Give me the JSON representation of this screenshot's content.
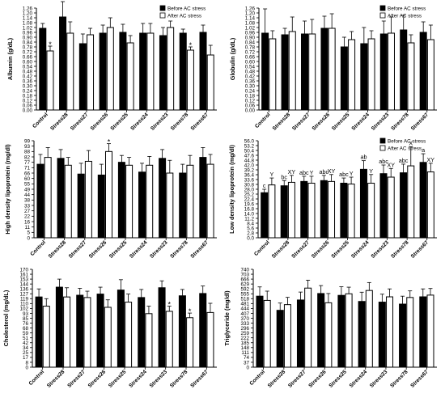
{
  "legend": {
    "before": "Before AC stress",
    "after": "After AC stress"
  },
  "colors": {
    "before": "#000000",
    "after": "#ffffff",
    "stroke": "#000000"
  },
  "chart_data": [
    {
      "type": "bar",
      "ylabel": "Albumin (g/dL)",
      "ylim": [
        0.0,
        1.26
      ],
      "yticks": [
        "0.00",
        "0.06",
        "0.12",
        "0.18",
        "0.24",
        "0.30",
        "0.36",
        "0.42",
        "0.48",
        "0.54",
        "0.60",
        "0.66",
        "0.72",
        "0.78",
        "0.84",
        "0.90",
        "0.96",
        "1.02",
        "1.08",
        "1.14",
        "1.20",
        "1.26"
      ],
      "ytick_values": [
        0.0,
        0.06,
        0.12,
        0.18,
        0.24,
        0.3,
        0.36,
        0.42,
        0.48,
        0.54,
        0.6,
        0.66,
        0.72,
        0.78,
        0.84,
        0.9,
        0.96,
        1.02,
        1.08,
        1.14,
        1.2,
        1.26
      ],
      "categories": [
        "Control",
        "Stress28",
        "Stress27",
        "Stress26",
        "Stress25",
        "Stress24",
        "Stress23",
        "Stress78",
        "Stress67"
      ],
      "series": [
        {
          "name": "Before AC stress",
          "values": [
            1.01,
            1.15,
            0.82,
            0.95,
            0.96,
            0.95,
            0.92,
            0.95,
            0.96
          ],
          "errors": [
            0.06,
            0.19,
            0.12,
            0.1,
            0.1,
            0.12,
            0.1,
            0.05,
            0.09
          ]
        },
        {
          "name": "After AC stress",
          "values": [
            0.73,
            0.95,
            0.93,
            1.02,
            0.83,
            0.95,
            1.02,
            0.74,
            0.68
          ],
          "errors": [
            0.06,
            0.14,
            0.08,
            0.12,
            0.09,
            0.12,
            0.08,
            0.04,
            0.12
          ]
        }
      ],
      "annotations": [
        {
          "category": "Control",
          "series": "after",
          "text": "*"
        },
        {
          "category": "Stress78",
          "series": "after",
          "text": "*"
        }
      ],
      "legend": "top-right"
    },
    {
      "type": "bar",
      "ylabel": "Globulin (g/dL)",
      "ylim": [
        0.0,
        1.26
      ],
      "yticks": [
        "0.00",
        "0.06",
        "0.12",
        "0.18",
        "0.24",
        "0.30",
        "0.36",
        "0.42",
        "0.48",
        "0.54",
        "0.60",
        "0.66",
        "0.72",
        "0.78",
        "0.84",
        "0.90",
        "0.96",
        "1.02",
        "1.08",
        "1.14",
        "1.20",
        "1.26"
      ],
      "ytick_values": [
        0.0,
        0.06,
        0.12,
        0.18,
        0.24,
        0.3,
        0.36,
        0.42,
        0.48,
        0.54,
        0.6,
        0.66,
        0.72,
        0.78,
        0.84,
        0.9,
        0.96,
        1.02,
        1.08,
        1.14,
        1.2,
        1.26
      ],
      "categories": [
        "Control",
        "Stress28",
        "Stress27",
        "Stress26",
        "Stress25",
        "Stress24",
        "Stress23",
        "Stress78",
        "Stress67"
      ],
      "series": [
        {
          "name": "Before AC stress",
          "values": [
            0.95,
            0.93,
            0.94,
            1.01,
            0.78,
            0.82,
            0.94,
            0.99,
            0.96
          ],
          "errors": [
            0.3,
            0.08,
            0.16,
            0.15,
            0.12,
            0.2,
            0.16,
            0.18,
            0.13
          ]
        },
        {
          "name": "After AC stress",
          "values": [
            0.88,
            0.97,
            0.94,
            1.01,
            0.87,
            0.88,
            0.95,
            0.83,
            0.87
          ],
          "errors": [
            0.1,
            0.18,
            0.18,
            0.18,
            0.1,
            0.1,
            0.2,
            0.1,
            0.18
          ]
        }
      ],
      "annotations": [],
      "legend": "top-right"
    },
    {
      "type": "bar",
      "ylabel": "High density lipoprotein (mg/dl)",
      "ylim": [
        0,
        99
      ],
      "yticks": [
        "0",
        "5",
        "11",
        "16",
        "22",
        "27",
        "33",
        "38",
        "44",
        "49",
        "55",
        "60",
        "66",
        "71",
        "77",
        "82",
        "88",
        "93",
        "99"
      ],
      "ytick_values": [
        0,
        5.5,
        11,
        16.5,
        22,
        27.5,
        33,
        38.5,
        44,
        49.5,
        55,
        60.5,
        66,
        71.5,
        77,
        82.5,
        88,
        93.5,
        99
      ],
      "categories": [
        "Control",
        "Stress28",
        "Stress27",
        "Stress26",
        "Stress25",
        "Stress24",
        "Stress23",
        "Stress78",
        "Stress67"
      ],
      "series": [
        {
          "name": "Before AC stress",
          "values": [
            75,
            81,
            65,
            64,
            77,
            67,
            81,
            66,
            82
          ],
          "errors": [
            10,
            9,
            11,
            11,
            7,
            9,
            9,
            9,
            10
          ]
        },
        {
          "name": "After AC stress",
          "values": [
            82,
            74,
            78,
            88,
            74,
            74,
            66,
            74,
            75
          ],
          "errors": [
            10,
            8,
            11,
            8,
            8,
            9,
            13,
            10,
            10
          ]
        }
      ],
      "annotations": [
        {
          "category": "Stress26",
          "series": "after",
          "text": "*"
        }
      ],
      "legend": "none"
    },
    {
      "type": "bar",
      "ylabel": "Low density lipoprotein (mg/dl)",
      "ylim": [
        0,
        56
      ],
      "yticks": [
        "0.0",
        "2.8",
        "5.6",
        "8.4",
        "11.2",
        "14.0",
        "16.8",
        "19.6",
        "22.4",
        "25.2",
        "28.0",
        "30.8",
        "33.6",
        "36.4",
        "39.2",
        "42.0",
        "44.8",
        "47.6",
        "50.4",
        "53.2",
        "56.0"
      ],
      "ytick_values": [
        0,
        2.8,
        5.6,
        8.4,
        11.2,
        14.0,
        16.8,
        19.6,
        22.4,
        25.2,
        28.0,
        30.8,
        33.6,
        36.4,
        39.2,
        42.0,
        44.8,
        47.6,
        50.4,
        53.2,
        56.0
      ],
      "categories": [
        "Control",
        "Stress28",
        "Stress27",
        "Stress26",
        "Stress25",
        "Stress24",
        "Stress23",
        "Stress78",
        "Stress67"
      ],
      "series": [
        {
          "name": "Before AC stress",
          "values": [
            26.0,
            30.0,
            32.5,
            33.0,
            31.5,
            39.5,
            37.0,
            37.5,
            43.5
          ],
          "errors": [
            2.0,
            3.0,
            3.0,
            3.0,
            3.0,
            5.0,
            5.0,
            5.0,
            5.0
          ]
        },
        {
          "name": "After AC stress",
          "values": [
            30.5,
            32.0,
            31.5,
            32.5,
            31.0,
            31.5,
            35.0,
            41.5,
            38.0
          ],
          "errors": [
            4.0,
            4.0,
            4.0,
            4.0,
            4.0,
            5.0,
            5.0,
            11.0,
            5.0
          ]
        }
      ],
      "annotations": [
        {
          "category": "Control",
          "series": "before",
          "text": "c"
        },
        {
          "category": "Control",
          "series": "after",
          "text": "Y"
        },
        {
          "category": "Stress28",
          "series": "before",
          "text": "bc"
        },
        {
          "category": "Stress28",
          "series": "after",
          "text": "XY"
        },
        {
          "category": "Stress27",
          "series": "before",
          "text": "abc"
        },
        {
          "category": "Stress27",
          "series": "after",
          "text": "Y"
        },
        {
          "category": "Stress26",
          "series": "before",
          "text": "abc"
        },
        {
          "category": "Stress26",
          "series": "after",
          "text": "XY"
        },
        {
          "category": "Stress25",
          "series": "before",
          "text": "abc"
        },
        {
          "category": "Stress25",
          "series": "after",
          "text": "Y"
        },
        {
          "category": "Stress24",
          "series": "before",
          "text": "ab"
        },
        {
          "category": "Stress24",
          "series": "after",
          "text": "Y"
        },
        {
          "category": "Stress23",
          "series": "before",
          "text": "abc"
        },
        {
          "category": "Stress23",
          "series": "after",
          "text": "XY"
        },
        {
          "category": "Stress78",
          "series": "before",
          "text": "abc"
        },
        {
          "category": "Stress78",
          "series": "after",
          "text": "X"
        },
        {
          "category": "Stress67",
          "series": "before",
          "text": "a"
        },
        {
          "category": "Stress67",
          "series": "after",
          "text": "XY"
        }
      ],
      "legend": "top-right"
    },
    {
      "type": "bar",
      "ylabel": "Cholesterol (mg/dL)",
      "ylim": [
        0,
        170
      ],
      "yticks": [
        "0",
        "8",
        "17",
        "25",
        "34",
        "42",
        "51",
        "59",
        "68",
        "76",
        "85",
        "93",
        "102",
        "110",
        "119",
        "127",
        "136",
        "144",
        "153",
        "161",
        "170"
      ],
      "ytick_values": [
        0,
        8.5,
        17,
        25.5,
        34,
        42.5,
        51,
        59.5,
        68,
        76.5,
        85,
        93.5,
        102,
        110.5,
        119,
        127.5,
        136,
        144.5,
        153,
        161.5,
        170
      ],
      "categories": [
        "Control",
        "Stress28",
        "Stress27",
        "Stress26",
        "Stress25",
        "Stress24",
        "Stress23",
        "Stress78",
        "Stress67"
      ],
      "series": [
        {
          "name": "Before AC stress",
          "values": [
            122,
            139,
            125,
            127,
            134,
            121,
            138,
            124,
            128
          ],
          "errors": [
            14,
            14,
            12,
            12,
            18,
            14,
            12,
            11,
            13
          ]
        },
        {
          "name": "After AC stress",
          "values": [
            106,
            122,
            121,
            104,
            113,
            93,
            97,
            86,
            95
          ],
          "errors": [
            13,
            16,
            11,
            13,
            14,
            13,
            9,
            8,
            16
          ]
        }
      ],
      "annotations": [
        {
          "category": "Stress23",
          "series": "after",
          "text": "*"
        },
        {
          "category": "Stress78",
          "series": "after",
          "text": "*"
        }
      ],
      "legend": "none"
    },
    {
      "type": "bar",
      "ylabel": "Triglyceride (mg/dl)",
      "ylim": [
        0,
        740
      ],
      "yticks": [
        "0",
        "37",
        "74",
        "111",
        "148",
        "185",
        "222",
        "259",
        "296",
        "333",
        "370",
        "407",
        "444",
        "481",
        "518",
        "555",
        "592",
        "629",
        "666",
        "703",
        "740"
      ],
      "ytick_values": [
        0,
        37,
        74,
        111,
        148,
        185,
        222,
        259,
        296,
        333,
        370,
        407,
        444,
        481,
        518,
        555,
        592,
        629,
        666,
        703,
        740
      ],
      "categories": [
        "Control",
        "Stress28",
        "Stress27",
        "Stress26",
        "Stress25",
        "Stress24",
        "Stress23",
        "Stress78",
        "Stress67"
      ],
      "series": [
        {
          "name": "Before AC stress",
          "values": [
            537,
            430,
            508,
            557,
            543,
            497,
            492,
            477,
            532
          ],
          "errors": [
            70,
            55,
            60,
            60,
            65,
            70,
            60,
            60,
            60
          ]
        },
        {
          "name": "After AC stress",
          "values": [
            505,
            473,
            598,
            487,
            555,
            580,
            532,
            527,
            545
          ],
          "errors": [
            70,
            55,
            60,
            70,
            50,
            60,
            60,
            50,
            50
          ]
        }
      ],
      "annotations": [],
      "legend": "none"
    }
  ]
}
